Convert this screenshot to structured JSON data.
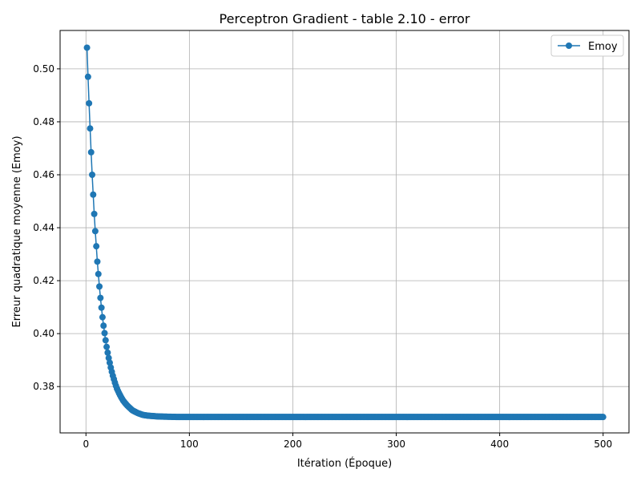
{
  "chart_data": {
    "type": "line",
    "title": "Perceptron Gradient - table 2.10 - error",
    "xlabel": "Itération (Époque)",
    "ylabel": "Erreur quadratique moyenne (Emoy)",
    "xlim": [
      -25,
      525
    ],
    "ylim": [
      0.3625,
      0.5145
    ],
    "x_ticks": [
      0,
      100,
      200,
      300,
      400,
      500
    ],
    "y_ticks": [
      0.38,
      0.4,
      0.42,
      0.44,
      0.46,
      0.48,
      0.5
    ],
    "grid": true,
    "legend_position": "top-right",
    "series": [
      {
        "name": "Emoy",
        "color": "#1f77b4",
        "marker": "circle",
        "x_start": 1,
        "x_end": 500,
        "keypoints": [
          [
            1,
            0.508
          ],
          [
            2,
            0.497
          ],
          [
            3,
            0.487
          ],
          [
            4,
            0.4775
          ],
          [
            5,
            0.4685
          ],
          [
            6,
            0.46
          ],
          [
            7,
            0.4525
          ],
          [
            8,
            0.4452
          ],
          [
            9,
            0.4387
          ],
          [
            10,
            0.433
          ],
          [
            11,
            0.4272
          ],
          [
            12,
            0.4225
          ],
          [
            13,
            0.4178
          ],
          [
            14,
            0.4135
          ],
          [
            15,
            0.4098
          ],
          [
            16,
            0.4062
          ],
          [
            17,
            0.403
          ],
          [
            18,
            0.4002
          ],
          [
            19,
            0.3975
          ],
          [
            20,
            0.395
          ],
          [
            21,
            0.3928
          ],
          [
            22,
            0.3908
          ],
          [
            23,
            0.389
          ],
          [
            24,
            0.3872
          ],
          [
            25,
            0.3856
          ],
          [
            26,
            0.3841
          ],
          [
            27,
            0.3828
          ],
          [
            28,
            0.3815
          ],
          [
            29,
            0.3803
          ],
          [
            30,
            0.3792
          ],
          [
            32,
            0.3775
          ],
          [
            34,
            0.376
          ],
          [
            36,
            0.3747
          ],
          [
            38,
            0.3737
          ],
          [
            40,
            0.3728
          ],
          [
            45,
            0.371
          ],
          [
            50,
            0.37
          ],
          [
            55,
            0.3693
          ],
          [
            60,
            0.369
          ],
          [
            70,
            0.3687
          ],
          [
            80,
            0.3686
          ],
          [
            90,
            0.3685
          ],
          [
            100,
            0.3685
          ],
          [
            500,
            0.3685
          ]
        ]
      }
    ]
  }
}
